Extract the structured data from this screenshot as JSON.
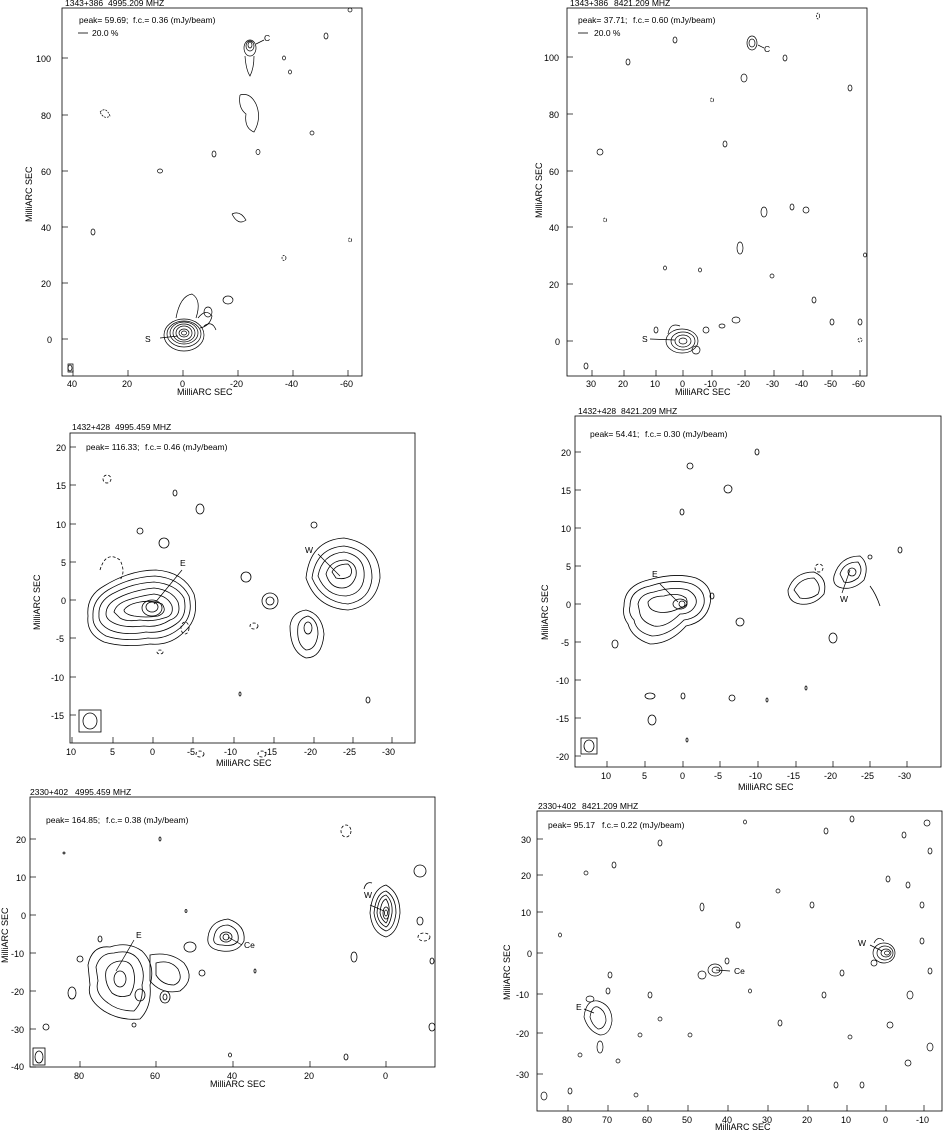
{
  "panels": [
    {
      "id": "p1",
      "source": "1343+386",
      "freq": "4995.209 MHZ",
      "peak": "peak= 59.69;",
      "fc": "f.c.= 0.36  (mJy/beam)",
      "pct": "20.0 %",
      "xlabel": "MilliARC SEC",
      "ylabel": "MilliARC SEC",
      "xticks": [
        "40",
        "20",
        "0",
        "-20",
        "-40",
        "-60"
      ],
      "yticks": [
        "100",
        "80",
        "60",
        "40",
        "20",
        "0"
      ],
      "labels": [
        "C",
        "S"
      ]
    },
    {
      "id": "p2",
      "source": "1343+386",
      "freq": "8421.209 MHZ",
      "peak": "peak= 37.71;",
      "fc": "f.c.= 0.60  (mJy/beam)",
      "pct": "20.0 %",
      "xlabel": "MilliARC SEC",
      "ylabel": "MilliARC SEC",
      "xticks": [
        "30",
        "20",
        "10",
        "0",
        "-10",
        "-20",
        "-30",
        "-40",
        "-50",
        "-60"
      ],
      "yticks": [
        "100",
        "80",
        "60",
        "40",
        "20",
        "0"
      ],
      "labels": [
        "C",
        "S"
      ]
    },
    {
      "id": "p3",
      "source": "1432+428",
      "freq": "4995.459 MHZ",
      "peak": "peak= 116.33;",
      "fc": "f.c.= 0.46  (mJy/beam)",
      "xlabel": "MilliARC SEC",
      "ylabel": "MilliARC SEC",
      "xticks": [
        "10",
        "5",
        "0",
        "-5",
        "-10",
        "-15",
        "-20",
        "-25",
        "-30"
      ],
      "yticks": [
        "20",
        "15",
        "10",
        "5",
        "0",
        "-5",
        "-10",
        "-15"
      ],
      "labels": [
        "E",
        "W"
      ]
    },
    {
      "id": "p4",
      "source": "1432+428",
      "freq": "8421.209 MHZ",
      "peak": "peak= 54.41;",
      "fc": "f.c.= 0.30  (mJy/beam)",
      "xlabel": "MilliARC SEC",
      "ylabel": "MilliARC SEC",
      "xticks": [
        "10",
        "5",
        "0",
        "-5",
        "-10",
        "-15",
        "-20",
        "-25",
        "-30"
      ],
      "yticks": [
        "20",
        "15",
        "10",
        "5",
        "0",
        "-5",
        "-10",
        "-15",
        "-20"
      ],
      "labels": [
        "E",
        "W"
      ]
    },
    {
      "id": "p5",
      "source": "2330+402",
      "freq": "4995.459 MHZ",
      "peak": "peak= 164.85;",
      "fc": "f.c.= 0.38  (mJy/beam)",
      "xlabel": "MilliARC SEC",
      "ylabel": "MilliARC SEC",
      "xticks": [
        "80",
        "60",
        "40",
        "20",
        "0"
      ],
      "yticks": [
        "20",
        "10",
        "0",
        "-10",
        "-20",
        "-30",
        "-40"
      ],
      "labels": [
        "E",
        "Ce",
        "W"
      ]
    },
    {
      "id": "p6",
      "source": "2330+402",
      "freq": "8421.209 MHZ",
      "peak": "peak= 95.17",
      "fc": "f.c.= 0.22  (mJy/beam)",
      "xlabel": "MilliARC SEC",
      "ylabel": "MilliARC SEC",
      "xticks": [
        "80",
        "70",
        "60",
        "50",
        "40",
        "30",
        "20",
        "10",
        "0",
        "-10"
      ],
      "yticks": [
        "30",
        "20",
        "10",
        "0",
        "-10",
        "-20",
        "-30"
      ],
      "labels": [
        "E",
        "Ce",
        "W"
      ]
    }
  ]
}
